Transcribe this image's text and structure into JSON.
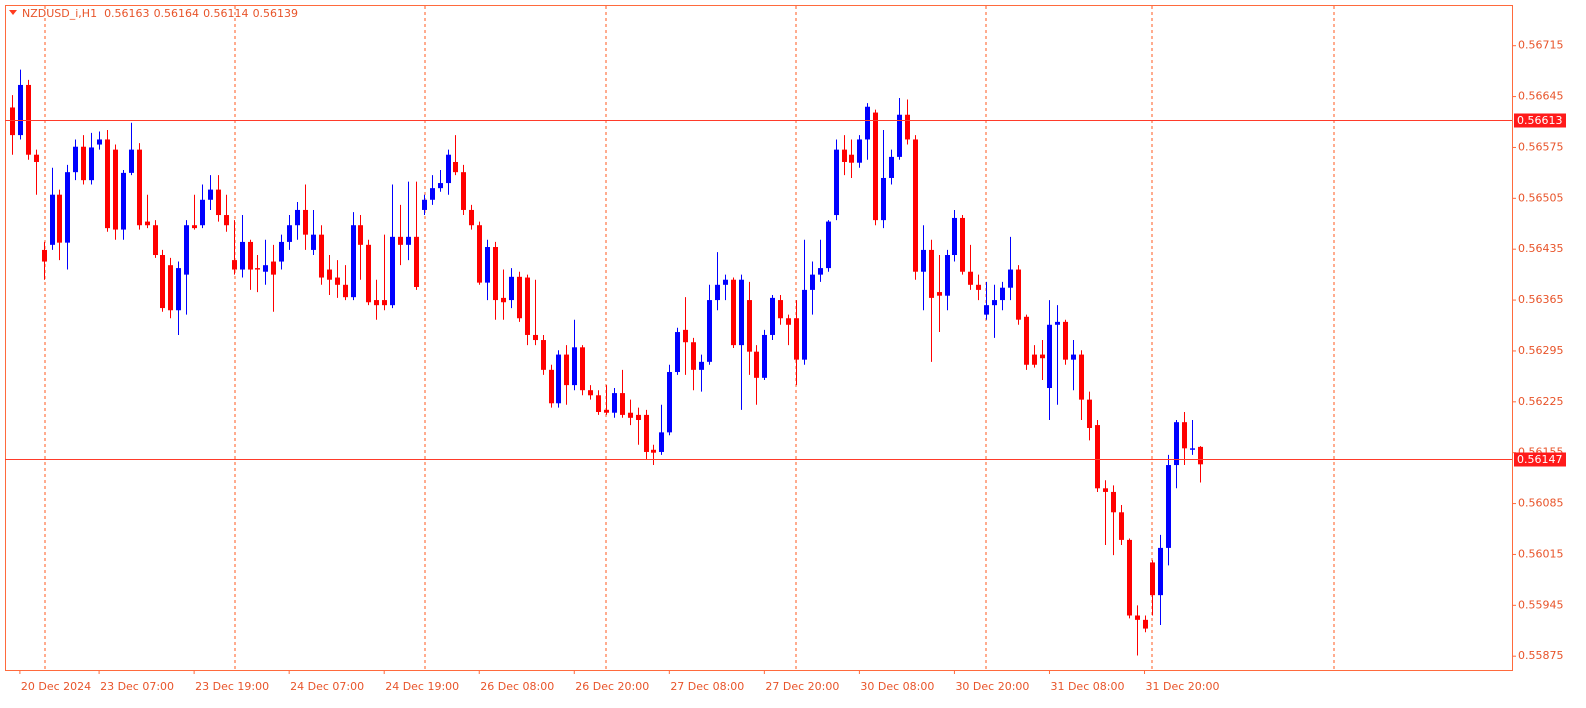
{
  "chart_data": {
    "type": "candlestick",
    "symbol": "NZDUSD_i,H1",
    "header_values": [
      0.56163,
      0.56164,
      0.56114,
      0.56139
    ],
    "up_color": "#0000ff",
    "down_color": "#ff0000",
    "ylim": [
      0.55856,
      0.56771
    ],
    "yticks": [
      0.55875,
      0.55945,
      0.56015,
      0.56085,
      0.56155,
      0.56225,
      0.56295,
      0.56365,
      0.56435,
      0.56505,
      0.56575,
      0.56645,
      0.56715
    ],
    "xlim": [
      -0.88,
      189.4
    ],
    "xticks": [
      {
        "value": 1,
        "label": "20 Dec 2024"
      },
      {
        "value": 11,
        "label": "23 Dec 07:00"
      },
      {
        "value": 23,
        "label": "23 Dec 19:00"
      },
      {
        "value": 35,
        "label": "24 Dec 07:00"
      },
      {
        "value": 47,
        "label": "24 Dec 19:00"
      },
      {
        "value": 59,
        "label": "26 Dec 08:00"
      },
      {
        "value": 71,
        "label": "26 Dec 20:00"
      },
      {
        "value": 83,
        "label": "27 Dec 08:00"
      },
      {
        "value": 95,
        "label": "27 Dec 20:00"
      },
      {
        "value": 107,
        "label": "30 Dec 08:00"
      },
      {
        "value": 119,
        "label": "30 Dec 20:00"
      },
      {
        "value": 131,
        "label": "31 Dec 08:00"
      },
      {
        "value": 143,
        "label": "31 Dec 20:00"
      }
    ],
    "price_lines": [
      0.56613,
      0.56147
    ],
    "ohlc": [
      [
        0.5663,
        0.56647,
        0.56565,
        0.56592
      ],
      [
        0.56592,
        0.56682,
        0.56586,
        0.56661
      ],
      [
        0.56661,
        0.56668,
        0.56558,
        0.56565
      ],
      [
        0.56565,
        0.56572,
        0.5651,
        0.56555
      ],
      [
        0.56434,
        0.56445,
        0.56393,
        0.56418
      ],
      [
        0.56441,
        0.56547,
        0.56434,
        0.5651
      ],
      [
        0.5651,
        0.56517,
        0.5642,
        0.56444
      ],
      [
        0.56444,
        0.56551,
        0.56407,
        0.56541
      ],
      [
        0.56541,
        0.56586,
        0.5653,
        0.56576
      ],
      [
        0.56576,
        0.56592,
        0.56524,
        0.5653
      ],
      [
        0.5653,
        0.56595,
        0.56524,
        0.56575
      ],
      [
        0.56579,
        0.56597,
        0.56572,
        0.56586
      ],
      [
        0.56586,
        0.56599,
        0.56459,
        0.56464
      ],
      [
        0.56572,
        0.56579,
        0.56448,
        0.56462
      ],
      [
        0.56462,
        0.56544,
        0.56448,
        0.5654
      ],
      [
        0.5654,
        0.56609,
        0.56537,
        0.56572
      ],
      [
        0.56572,
        0.56581,
        0.56462,
        0.56468
      ],
      [
        0.56473,
        0.5651,
        0.56464,
        0.56468
      ],
      [
        0.56468,
        0.56475,
        0.56423,
        0.56427
      ],
      [
        0.56427,
        0.56434,
        0.56349,
        0.56354
      ],
      [
        0.56413,
        0.56423,
        0.5634,
        0.56351
      ],
      [
        0.56351,
        0.56418,
        0.56317,
        0.56409
      ],
      [
        0.564,
        0.56475,
        0.56345,
        0.56468
      ],
      [
        0.56468,
        0.5651,
        0.56462,
        0.56464
      ],
      [
        0.56468,
        0.56524,
        0.56464,
        0.56503
      ],
      [
        0.56503,
        0.56537,
        0.56489,
        0.56517
      ],
      [
        0.56517,
        0.56537,
        0.56473,
        0.56482
      ],
      [
        0.56482,
        0.5651,
        0.56459,
        0.56468
      ],
      [
        0.5642,
        0.56475,
        0.564,
        0.56407
      ],
      [
        0.56407,
        0.56482,
        0.56396,
        0.56445
      ],
      [
        0.56445,
        0.56448,
        0.56379,
        0.56407
      ],
      [
        0.56409,
        0.56427,
        0.56376,
        0.56407
      ],
      [
        0.56404,
        0.56448,
        0.56386,
        0.56413
      ],
      [
        0.56418,
        0.56441,
        0.56349,
        0.564
      ],
      [
        0.56418,
        0.56455,
        0.56407,
        0.56445
      ],
      [
        0.56445,
        0.56482,
        0.56434,
        0.56468
      ],
      [
        0.56468,
        0.565,
        0.56448,
        0.56489
      ],
      [
        0.56489,
        0.56524,
        0.56434,
        0.56455
      ],
      [
        0.56434,
        0.56489,
        0.56427,
        0.56455
      ],
      [
        0.56455,
        0.56468,
        0.56386,
        0.56396
      ],
      [
        0.56407,
        0.56427,
        0.56372,
        0.56393
      ],
      [
        0.56396,
        0.5642,
        0.56368,
        0.56386
      ],
      [
        0.56386,
        0.56413,
        0.56365,
        0.56369
      ],
      [
        0.56369,
        0.56486,
        0.56365,
        0.56468
      ],
      [
        0.56468,
        0.56482,
        0.56393,
        0.56441
      ],
      [
        0.56441,
        0.56448,
        0.56358,
        0.56362
      ],
      [
        0.56365,
        0.56393,
        0.56338,
        0.56358
      ],
      [
        0.56365,
        0.56455,
        0.56351,
        0.56358
      ],
      [
        0.56358,
        0.56524,
        0.56354,
        0.56452
      ],
      [
        0.56452,
        0.56496,
        0.56413,
        0.56441
      ],
      [
        0.56441,
        0.56528,
        0.5642,
        0.56452
      ],
      [
        0.56452,
        0.56528,
        0.56379,
        0.56383
      ],
      [
        0.56489,
        0.5651,
        0.56482,
        0.56503
      ],
      [
        0.56503,
        0.56537,
        0.56496,
        0.56519
      ],
      [
        0.56519,
        0.56544,
        0.56514,
        0.56526
      ],
      [
        0.56526,
        0.56572,
        0.5651,
        0.56565
      ],
      [
        0.56555,
        0.56592,
        0.56537,
        0.56541
      ],
      [
        0.56541,
        0.56551,
        0.56482,
        0.56489
      ],
      [
        0.56489,
        0.56496,
        0.56462,
        0.56468
      ],
      [
        0.56468,
        0.56473,
        0.56386,
        0.56389
      ],
      [
        0.56389,
        0.56448,
        0.56365,
        0.56438
      ],
      [
        0.56438,
        0.56445,
        0.56338,
        0.56365
      ],
      [
        0.56368,
        0.56407,
        0.56338,
        0.56362
      ],
      [
        0.56365,
        0.56409,
        0.56354,
        0.56397
      ],
      [
        0.56397,
        0.56404,
        0.56335,
        0.5634
      ],
      [
        0.56396,
        0.564,
        0.56303,
        0.56317
      ],
      [
        0.56317,
        0.56393,
        0.56303,
        0.5631
      ],
      [
        0.5631,
        0.56317,
        0.56262,
        0.56269
      ],
      [
        0.56269,
        0.56276,
        0.56217,
        0.56223
      ],
      [
        0.56223,
        0.56296,
        0.56217,
        0.5629
      ],
      [
        0.5629,
        0.56303,
        0.56221,
        0.56248
      ],
      [
        0.56248,
        0.56338,
        0.56241,
        0.563
      ],
      [
        0.563,
        0.56303,
        0.56234,
        0.56241
      ],
      [
        0.56241,
        0.56248,
        0.56228,
        0.56234
      ],
      [
        0.56234,
        0.56241,
        0.56207,
        0.56211
      ],
      [
        0.56214,
        0.56248,
        0.56207,
        0.5621
      ],
      [
        0.5621,
        0.56244,
        0.56203,
        0.56237
      ],
      [
        0.56237,
        0.56269,
        0.56203,
        0.56207
      ],
      [
        0.5621,
        0.56228,
        0.56193,
        0.56203
      ],
      [
        0.56207,
        0.56217,
        0.56166,
        0.562
      ],
      [
        0.56207,
        0.56214,
        0.56145,
        0.56156
      ],
      [
        0.56159,
        0.56166,
        0.56138,
        0.56155
      ],
      [
        0.56156,
        0.56221,
        0.56152,
        0.56183
      ],
      [
        0.56183,
        0.56276,
        0.56179,
        0.56266
      ],
      [
        0.56266,
        0.56327,
        0.56262,
        0.56321
      ],
      [
        0.56324,
        0.56369,
        0.56262,
        0.56307
      ],
      [
        0.56307,
        0.56313,
        0.56241,
        0.56269
      ],
      [
        0.56269,
        0.5629,
        0.56239,
        0.5628
      ],
      [
        0.5628,
        0.56386,
        0.56276,
        0.56365
      ],
      [
        0.56365,
        0.56431,
        0.56351,
        0.56386
      ],
      [
        0.56386,
        0.564,
        0.56365,
        0.56393
      ],
      [
        0.56393,
        0.56396,
        0.56299,
        0.56303
      ],
      [
        0.56303,
        0.564,
        0.56214,
        0.56393
      ],
      [
        0.56365,
        0.5639,
        0.56262,
        0.56294
      ],
      [
        0.56294,
        0.56303,
        0.56221,
        0.56258
      ],
      [
        0.56258,
        0.56324,
        0.56255,
        0.56317
      ],
      [
        0.56317,
        0.56372,
        0.5631,
        0.56368
      ],
      [
        0.56365,
        0.56372,
        0.56331,
        0.5634
      ],
      [
        0.5634,
        0.56345,
        0.56303,
        0.56331
      ],
      [
        0.5634,
        0.56365,
        0.56248,
        0.56283
      ],
      [
        0.56283,
        0.56448,
        0.56276,
        0.56379
      ],
      [
        0.56379,
        0.56418,
        0.56345,
        0.564
      ],
      [
        0.564,
        0.56448,
        0.5639,
        0.56409
      ],
      [
        0.56409,
        0.56475,
        0.56404,
        0.56473
      ],
      [
        0.56482,
        0.56586,
        0.56475,
        0.56572
      ],
      [
        0.56572,
        0.56592,
        0.56537,
        0.56555
      ],
      [
        0.56565,
        0.56586,
        0.56533,
        0.56554
      ],
      [
        0.56554,
        0.56592,
        0.56547,
        0.56586
      ],
      [
        0.56586,
        0.56636,
        0.56558,
        0.56631
      ],
      [
        0.56623,
        0.56627,
        0.56468,
        0.56475
      ],
      [
        0.56475,
        0.56599,
        0.56464,
        0.56533
      ],
      [
        0.56533,
        0.56572,
        0.56524,
        0.56562
      ],
      [
        0.56562,
        0.56643,
        0.56558,
        0.5662
      ],
      [
        0.5662,
        0.56641,
        0.56579,
        0.56586
      ],
      [
        0.56586,
        0.56592,
        0.56393,
        0.56404
      ],
      [
        0.56404,
        0.56468,
        0.56351,
        0.56434
      ],
      [
        0.56434,
        0.56448,
        0.5628,
        0.56368
      ],
      [
        0.56376,
        0.56427,
        0.56321,
        0.56371
      ],
      [
        0.56371,
        0.56434,
        0.56351,
        0.56427
      ],
      [
        0.56427,
        0.56489,
        0.56418,
        0.56478
      ],
      [
        0.56478,
        0.56482,
        0.564,
        0.56404
      ],
      [
        0.56404,
        0.56441,
        0.56379,
        0.56386
      ],
      [
        0.56386,
        0.564,
        0.56365,
        0.56379
      ],
      [
        0.56345,
        0.5639,
        0.56338,
        0.56358
      ],
      [
        0.56358,
        0.56386,
        0.56313,
        0.56365
      ],
      [
        0.56365,
        0.5639,
        0.56351,
        0.56382
      ],
      [
        0.56382,
        0.56452,
        0.56365,
        0.56407
      ],
      [
        0.56407,
        0.56413,
        0.56331,
        0.56338
      ],
      [
        0.56342,
        0.56345,
        0.56269,
        0.56276
      ],
      [
        0.5629,
        0.56303,
        0.56272,
        0.56276
      ],
      [
        0.5629,
        0.5631,
        0.56255,
        0.56285
      ],
      [
        0.56244,
        0.56365,
        0.562,
        0.56331
      ],
      [
        0.56331,
        0.56358,
        0.56221,
        0.56335
      ],
      [
        0.56335,
        0.56338,
        0.56276,
        0.56283
      ],
      [
        0.56283,
        0.5631,
        0.56241,
        0.5629
      ],
      [
        0.5629,
        0.56296,
        0.562,
        0.56228
      ],
      [
        0.56228,
        0.56239,
        0.56172,
        0.56189
      ],
      [
        0.56193,
        0.562,
        0.56101,
        0.56106
      ],
      [
        0.56106,
        0.56117,
        0.56028,
        0.56101
      ],
      [
        0.56101,
        0.5611,
        0.56014,
        0.56073
      ],
      [
        0.56073,
        0.56083,
        0.56028,
        0.56035
      ],
      [
        0.56035,
        0.56037,
        0.55927,
        0.55931
      ],
      [
        0.55931,
        0.55945,
        0.55876,
        0.55925
      ],
      [
        0.55925,
        0.55931,
        0.55908,
        0.55913
      ],
      [
        0.56004,
        0.56007,
        0.55931,
        0.55959
      ],
      [
        0.55959,
        0.56042,
        0.55918,
        0.56024
      ],
      [
        0.56024,
        0.56152,
        0.56,
        0.56138
      ],
      [
        0.56138,
        0.562,
        0.56106,
        0.56197
      ],
      [
        0.56197,
        0.56211,
        0.56138,
        0.56161
      ],
      [
        0.56159,
        0.562,
        0.56152,
        0.56161
      ],
      [
        0.56163,
        0.56164,
        0.56114,
        0.56139
      ]
    ]
  }
}
